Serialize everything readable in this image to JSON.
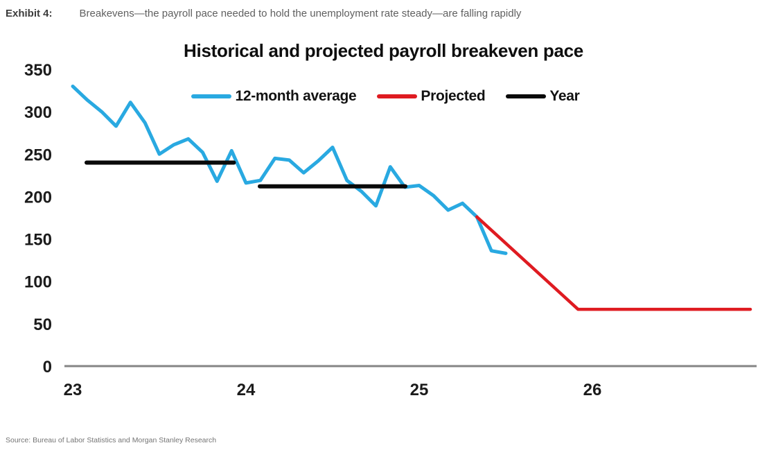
{
  "header": {
    "exhibit_label": "Exhibit 4:",
    "caption": "Breakevens—the payroll pace needed to hold the unemployment rate steady—are falling rapidly"
  },
  "source": "Source: Bureau of Labor Statistics and Morgan Stanley Research",
  "chart_data": {
    "type": "line",
    "title": "Historical and projected payroll breakeven pace",
    "xlabel": "",
    "ylabel": "",
    "x_ticks": [
      23,
      24,
      25,
      26
    ],
    "y_ticks": [
      0,
      50,
      100,
      150,
      200,
      250,
      300,
      350
    ],
    "xlim": [
      22.95,
      26.95
    ],
    "ylim": [
      0,
      350
    ],
    "grid": false,
    "legend_position": "top-center",
    "colors": {
      "twelve_month": "#29A9E1",
      "projected": "#DF1B21",
      "year": "#0a0a0a",
      "axis": "#858585"
    },
    "series": [
      {
        "name": "12-month average",
        "color_key": "twelve_month",
        "x": [
          23.0,
          23.083,
          23.167,
          23.25,
          23.333,
          23.417,
          23.5,
          23.583,
          23.667,
          23.75,
          23.833,
          23.917,
          24.0,
          24.083,
          24.167,
          24.25,
          24.333,
          24.417,
          24.5,
          24.583,
          24.667,
          24.75,
          24.833,
          24.917,
          25.0,
          25.083,
          25.167,
          25.25,
          25.333,
          25.417,
          25.5
        ],
        "values": [
          330,
          314,
          300,
          283,
          311,
          287,
          250,
          261,
          268,
          252,
          218,
          254,
          216,
          219,
          245,
          243,
          228,
          242,
          258,
          219,
          206,
          189,
          235,
          211,
          213,
          201,
          184,
          192,
          176,
          136,
          133
        ]
      },
      {
        "name": "Projected",
        "color_key": "projected",
        "x": [
          25.333,
          25.917,
          26.912
        ],
        "values": [
          176,
          67,
          67
        ]
      },
      {
        "name": "Year",
        "color_key": "year",
        "segments": [
          {
            "x": [
              23.08,
              23.93
            ],
            "value": 240
          },
          {
            "x": [
              24.08,
              24.92
            ],
            "value": 212
          }
        ]
      }
    ]
  }
}
